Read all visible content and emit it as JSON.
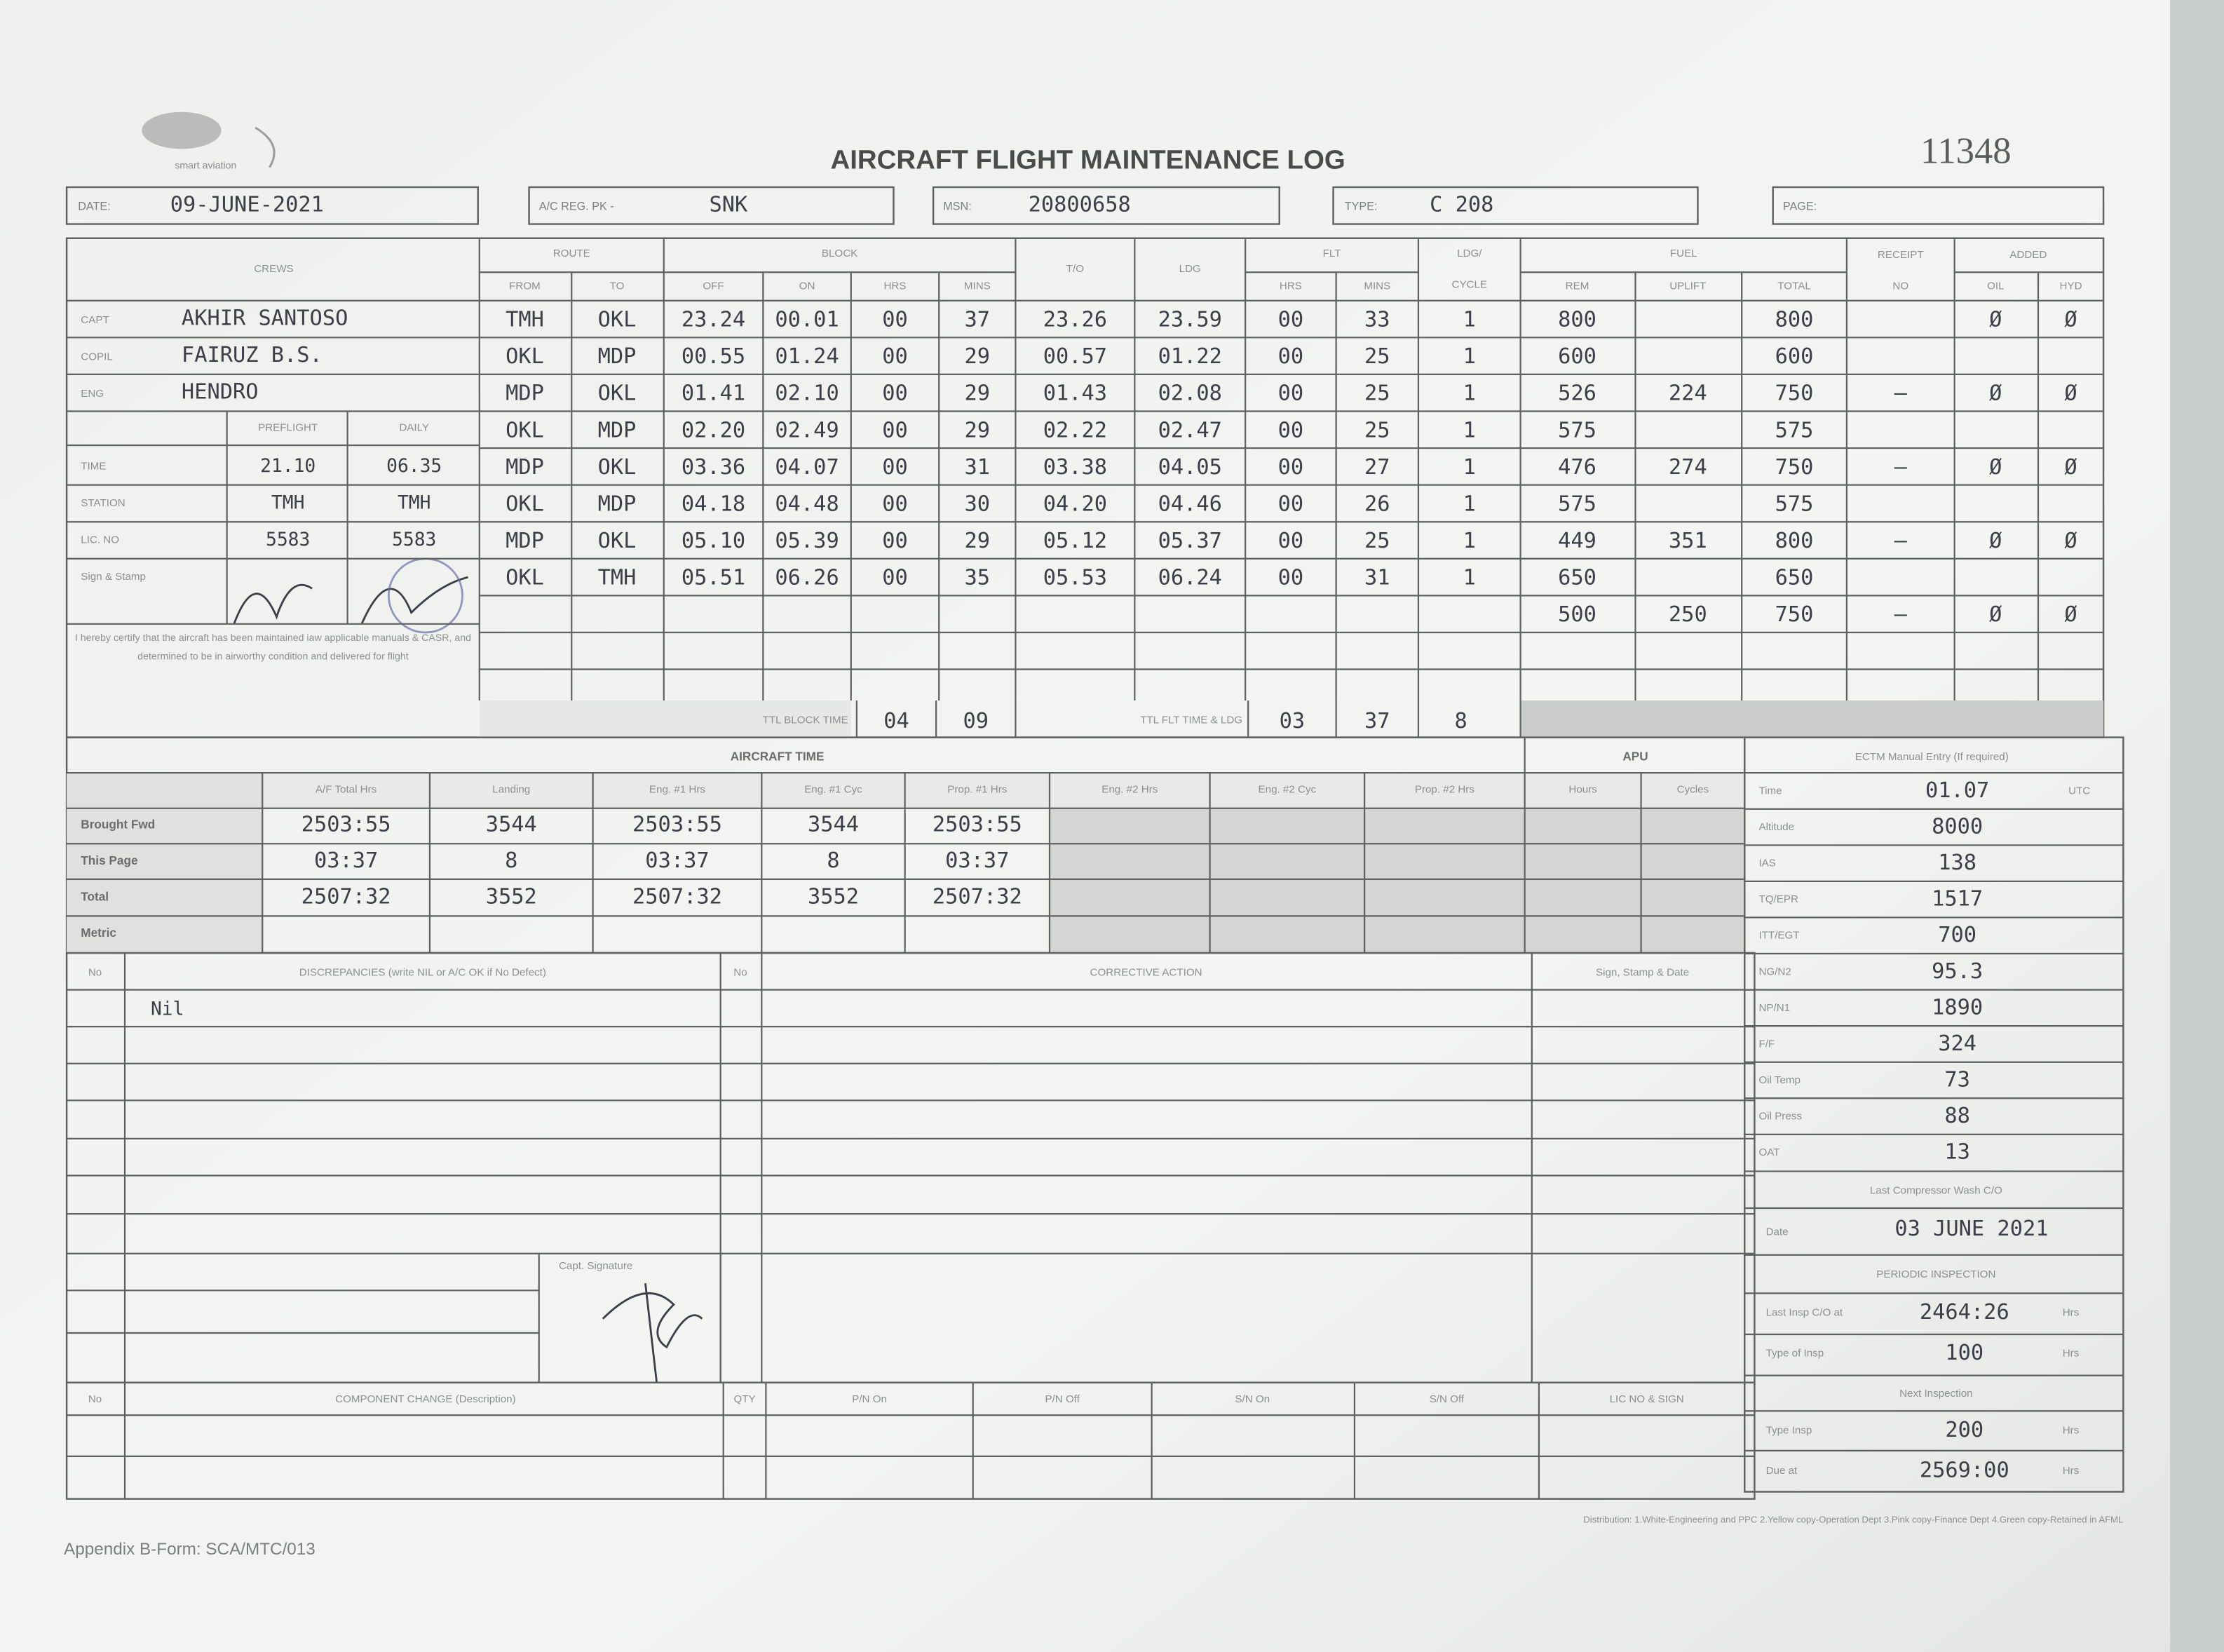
{
  "header": {
    "logo": "smart aviation",
    "title": "AIRCRAFT FLIGHT MAINTENANCE LOG",
    "serial": "11348",
    "date": {
      "label": "DATE:",
      "value": "09-JUNE-2021"
    },
    "ac_reg": {
      "label": "A/C REG. PK -",
      "value": "SNK"
    },
    "msn": {
      "label": "MSN:",
      "value": "20800658"
    },
    "type": {
      "label": "TYPE:",
      "value": "C 208"
    },
    "page": {
      "label": "PAGE:"
    }
  },
  "flight_log": {
    "headers": {
      "crews": "CREWS",
      "route": "ROUTE",
      "from": "FROM",
      "to": "TO",
      "block": "BLOCK",
      "off": "OFF",
      "on": "ON",
      "hrs": "HRS",
      "mins": "MINS",
      "takeoff": "T/O",
      "landing": "LDG",
      "flt": "FLT",
      "flt_hrs": "HRS",
      "flt_mins": "MINS",
      "ldg_cycle": [
        "LDG/",
        "CYCLE"
      ],
      "fuel": "FUEL",
      "rem": "REM",
      "uplift": "UPLIFT",
      "total": "TOTAL",
      "receipt": "RECEIPT",
      "receipt_no": "NO",
      "added": "ADDED",
      "oil": "OIL",
      "hyd": "HYD"
    },
    "rows": [
      {
        "from": "TMH",
        "to": "OKL",
        "off": "23.24",
        "on": "00.01",
        "hrs": "00",
        "mins": "37",
        "takeoff": "23.26",
        "landing": "23.59",
        "flt_hrs": "00",
        "flt_mins": "33",
        "cycles": "1",
        "rem": "800",
        "total": "800",
        "oil": "Ø",
        "hyd": "Ø"
      },
      {
        "from": "OKL",
        "to": "MDP",
        "off": "00.55",
        "on": "01.24",
        "hrs": "00",
        "mins": "29",
        "takeoff": "00.57",
        "landing": "01.22",
        "flt_hrs": "00",
        "flt_mins": "25",
        "cycles": "1",
        "rem": "600",
        "total": "600"
      },
      {
        "from": "MDP",
        "to": "OKL",
        "off": "01.41",
        "on": "02.10",
        "hrs": "00",
        "mins": "29",
        "takeoff": "01.43",
        "landing": "02.08",
        "flt_hrs": "00",
        "flt_mins": "25",
        "cycles": "1",
        "rem": "526",
        "uplift": "224",
        "total": "750",
        "receipt": "–",
        "oil": "Ø",
        "hyd": "Ø"
      },
      {
        "from": "OKL",
        "to": "MDP",
        "off": "02.20",
        "on": "02.49",
        "hrs": "00",
        "mins": "29",
        "takeoff": "02.22",
        "landing": "02.47",
        "flt_hrs": "00",
        "flt_mins": "25",
        "cycles": "1",
        "rem": "575",
        "total": "575"
      },
      {
        "from": "MDP",
        "to": "OKL",
        "off": "03.36",
        "on": "04.07",
        "hrs": "00",
        "mins": "31",
        "takeoff": "03.38",
        "landing": "04.05",
        "flt_hrs": "00",
        "flt_mins": "27",
        "cycles": "1",
        "rem": "476",
        "uplift": "274",
        "total": "750",
        "receipt": "–",
        "oil": "Ø",
        "hyd": "Ø"
      },
      {
        "from": "OKL",
        "to": "MDP",
        "off": "04.18",
        "on": "04.48",
        "hrs": "00",
        "mins": "30",
        "takeoff": "04.20",
        "landing": "04.46",
        "flt_hrs": "00",
        "flt_mins": "26",
        "cycles": "1",
        "rem": "575",
        "total": "575"
      },
      {
        "from": "MDP",
        "to": "OKL",
        "off": "05.10",
        "on": "05.39",
        "hrs": "00",
        "mins": "29",
        "takeoff": "05.12",
        "landing": "05.37",
        "flt_hrs": "00",
        "flt_mins": "25",
        "cycles": "1",
        "rem": "449",
        "uplift": "351",
        "total": "800",
        "receipt": "–",
        "oil": "Ø",
        "hyd": "Ø"
      },
      {
        "from": "OKL",
        "to": "TMH",
        "off": "05.51",
        "on": "06.26",
        "hrs": "00",
        "mins": "35",
        "takeoff": "05.53",
        "landing": "06.24",
        "flt_hrs": "00",
        "flt_mins": "31",
        "cycles": "1",
        "rem": "650",
        "total": "650"
      },
      {
        "rem": "500",
        "uplift": "250",
        "total": "750",
        "receipt": "–",
        "oil": "Ø",
        "hyd": "Ø"
      }
    ],
    "crew": [
      {
        "label": "CAPT",
        "value": "AKHIR SANTOSO"
      },
      {
        "label": "COPIL",
        "value": "FAIRUZ B.S."
      },
      {
        "label": "ENG",
        "value": "HENDRO"
      }
    ],
    "release": {
      "preflight": "PREFLIGHT",
      "daily": "DAILY",
      "rows": [
        {
          "label": "TIME",
          "preflight": "21.10",
          "daily": "06.35"
        },
        {
          "label": "STATION",
          "preflight": "TMH",
          "daily": "TMH"
        },
        {
          "label": "LIC. NO",
          "preflight": "5583",
          "daily": "5583"
        },
        {
          "label": "Sign & Stamp"
        }
      ]
    },
    "certification": "I hereby certify that the aircraft has been maintained iaw applicable manuals & CASR, and determined to be in airworthy condition and delivered for flight",
    "totals": {
      "block_label": "TTL BLOCK TIME",
      "block_hrs": "04",
      "block_mins": "09",
      "flt_label": "TTL FLT TIME & LDG",
      "flt_hrs": "03",
      "flt_mins": "37",
      "landings": "8"
    }
  },
  "aircraft_time": {
    "title": "AIRCRAFT TIME",
    "apu": "APU",
    "columns": [
      "A/F Total Hrs",
      "Landing",
      "Eng. #1 Hrs",
      "Eng. #1 Cyc",
      "Prop. #1 Hrs",
      "Eng. #2 Hrs",
      "Eng. #2 Cyc",
      "Prop. #2 Hrs",
      "Hours",
      "Cycles"
    ],
    "rows": [
      {
        "label": "Brought Fwd",
        "values": [
          "2503:55",
          "3544",
          "2503:55",
          "3544",
          "2503:55"
        ]
      },
      {
        "label": "This Page",
        "values": [
          "03:37",
          "8",
          "03:37",
          "8",
          "03:37"
        ]
      },
      {
        "label": "Total",
        "values": [
          "2507:32",
          "3552",
          "2507:32",
          "3552",
          "2507:32"
        ]
      },
      {
        "label": "Metric",
        "values": []
      }
    ]
  },
  "ectm": {
    "title": "ECTM Manual Entry (If required)",
    "rows": [
      {
        "label": "Time",
        "value": "01.07",
        "unit": "UTC"
      },
      {
        "label": "Altitude",
        "value": "8000"
      },
      {
        "label": "IAS",
        "value": "138"
      },
      {
        "label": "TQ/EPR",
        "value": "1517"
      },
      {
        "label": "ITT/EGT",
        "value": "700"
      },
      {
        "label": "NG/N2",
        "value": "95.3"
      },
      {
        "label": "NP/N1",
        "value": "1890"
      },
      {
        "label": "F/F",
        "value": "324"
      },
      {
        "label": "Oil Temp",
        "value": "73"
      },
      {
        "label": "Oil Press",
        "value": "88"
      },
      {
        "label": "OAT",
        "value": "13"
      }
    ]
  },
  "compressor_wash": {
    "title": "Last Compressor Wash C/O",
    "label": "Date",
    "value": "03 JUNE 2021"
  },
  "periodic_inspection": {
    "title": "PERIODIC INSPECTION",
    "rows": [
      {
        "label": "Last Insp C/O at",
        "value": "2464:26",
        "unit": "Hrs"
      },
      {
        "label": "Type of Insp",
        "value": "100",
        "unit": "Hrs"
      }
    ]
  },
  "next_inspection": {
    "title": "Next Inspection",
    "rows": [
      {
        "label": "Type Insp",
        "value": "200",
        "unit": "Hrs"
      },
      {
        "label": "Due at",
        "value": "2569:00",
        "unit": "Hrs"
      }
    ]
  },
  "discrepancies": {
    "headers": [
      "No",
      "DISCREPANCIES (write NIL or A/C OK if No Defect)",
      "No",
      "CORRECTIVE ACTION",
      "Sign, Stamp & Date"
    ],
    "entries": [
      "Nil"
    ],
    "capt_signature": "Capt. Signature"
  },
  "component_change": {
    "headers": [
      "No",
      "COMPONENT CHANGE (Description)",
      "QTY",
      "P/N On",
      "P/N Off",
      "S/N On",
      "S/N Off",
      "LIC NO & SIGN"
    ]
  },
  "footer": {
    "form": "Appendix B-Form: SCA/MTC/013",
    "distribution": "Distribution: 1.White-Engineering and PPC  2.Yellow copy-Operation Dept  3.Pink copy-Finance Dept  4.Green copy-Retained in AFML"
  }
}
